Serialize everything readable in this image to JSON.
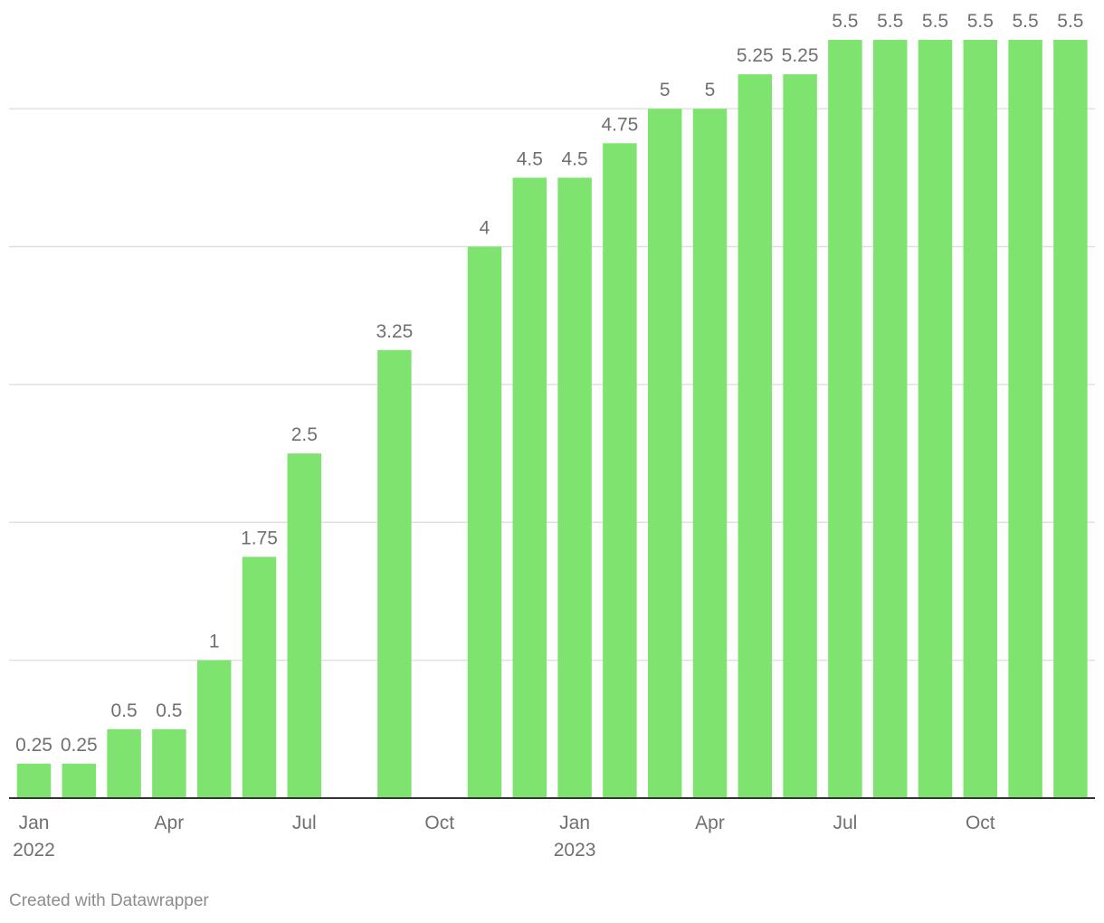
{
  "chart_data": {
    "type": "bar",
    "categories": [
      "2022-01",
      "2022-02",
      "2022-03",
      "2022-04",
      "2022-05",
      "2022-06",
      "2022-07",
      "2022-08",
      "2022-09",
      "2022-10",
      "2022-11",
      "2022-12",
      "2023-01",
      "2023-02",
      "2023-03",
      "2023-04",
      "2023-05",
      "2023-06",
      "2023-07",
      "2023-08",
      "2023-09",
      "2023-10",
      "2023-11",
      "2023-12"
    ],
    "values": [
      0.25,
      0.25,
      0.5,
      0.5,
      1,
      1.75,
      2.5,
      null,
      3.25,
      null,
      4,
      4.5,
      4.5,
      4.75,
      5,
      5,
      5.25,
      5.25,
      5.5,
      5.5,
      5.5,
      5.5,
      5.5,
      5.5
    ],
    "data_labels": [
      "0.25",
      "0.25",
      "0.5",
      "0.5",
      "1",
      "1.75",
      "2.5",
      "",
      "3.25",
      "",
      "4",
      "4.5",
      "4.5",
      "4.75",
      "5",
      "5",
      "5.25",
      "5.25",
      "5.5",
      "5.5",
      "5.5",
      "5.5",
      "5.5",
      "5.5"
    ],
    "x_ticks": [
      {
        "index": 0,
        "label": "Jan",
        "sublabel": "2022"
      },
      {
        "index": 3,
        "label": "Apr",
        "sublabel": ""
      },
      {
        "index": 6,
        "label": "Jul",
        "sublabel": ""
      },
      {
        "index": 9,
        "label": "Oct",
        "sublabel": ""
      },
      {
        "index": 12,
        "label": "Jan",
        "sublabel": "2023"
      },
      {
        "index": 15,
        "label": "Apr",
        "sublabel": ""
      },
      {
        "index": 18,
        "label": "Jul",
        "sublabel": ""
      },
      {
        "index": 21,
        "label": "Oct",
        "sublabel": ""
      }
    ],
    "gridlines": [
      1,
      2,
      3,
      4,
      5
    ],
    "ylim": [
      0,
      5.5
    ],
    "grid": true,
    "title": "",
    "xlabel": "",
    "ylabel": "",
    "bar_color": "#7ee46f",
    "axis_color": "#333333",
    "grid_color": "#e0e0e0"
  },
  "footer": {
    "credit": "Created with Datawrapper"
  }
}
